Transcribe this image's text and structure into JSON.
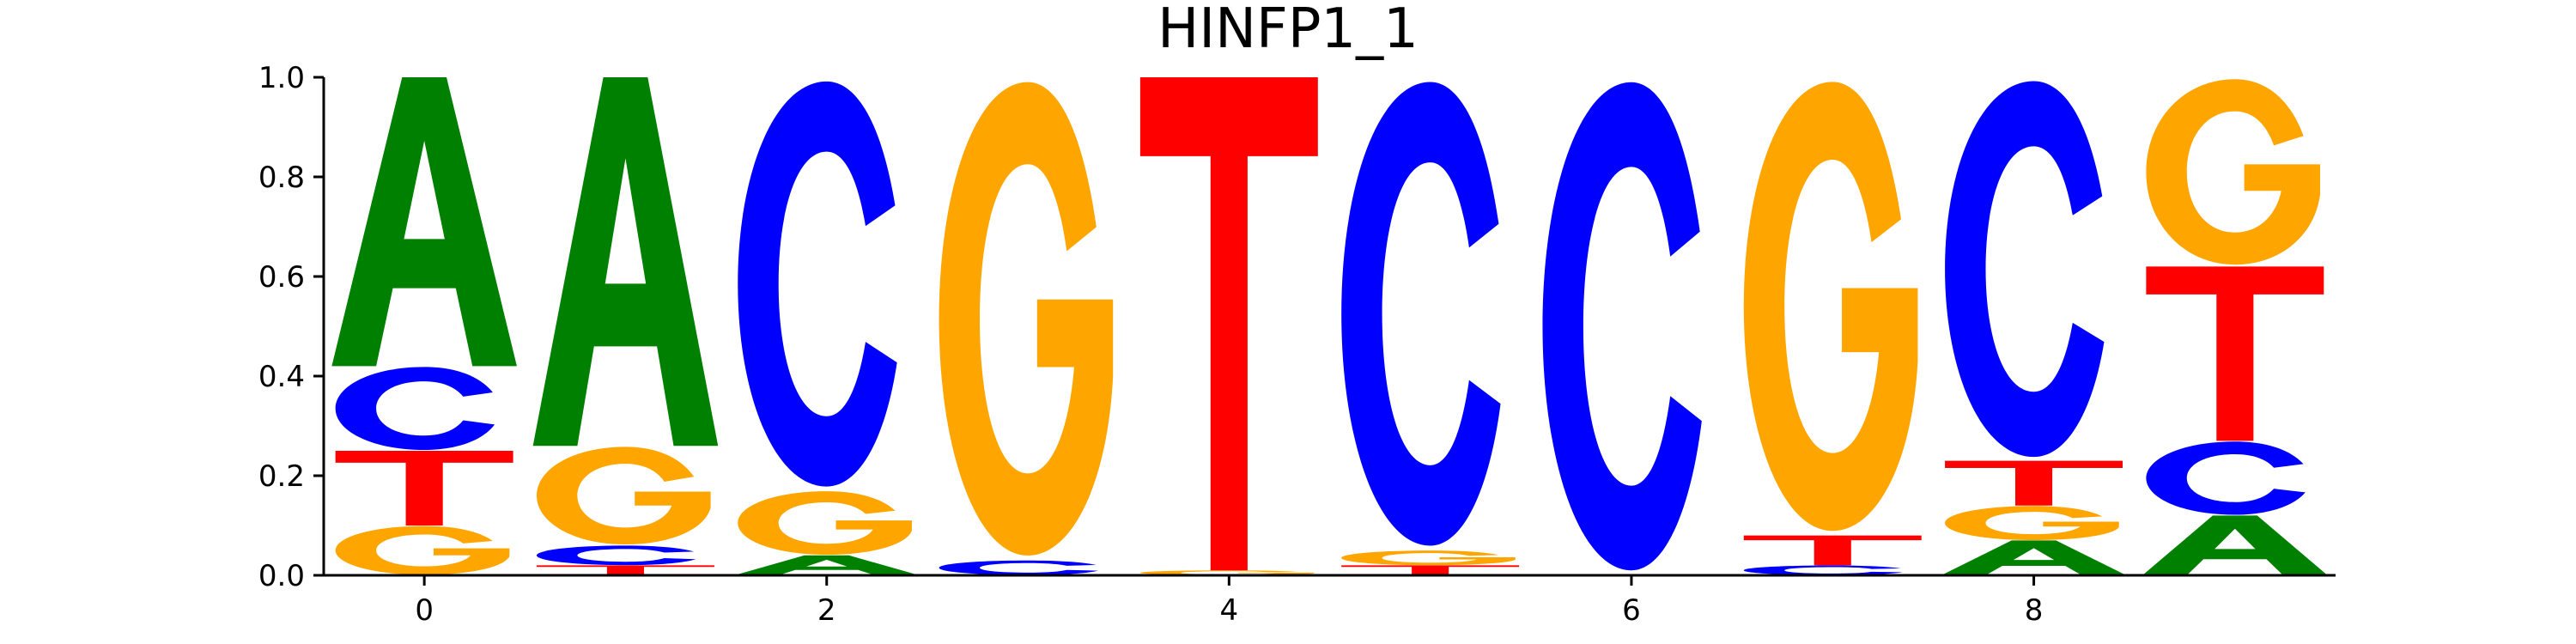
{
  "chart_data": {
    "type": "sequence-logo",
    "title": "HINFP1_1",
    "xlabel": "",
    "ylabel": "",
    "ylim": [
      0,
      1
    ],
    "xlim": [
      -0.5,
      9.5
    ],
    "x_ticks": [
      0,
      2,
      4,
      6,
      8
    ],
    "y_ticks": [
      0.0,
      0.2,
      0.4,
      0.6,
      0.8,
      1.0
    ],
    "x_tick_labels": [
      "0",
      "2",
      "4",
      "6",
      "8"
    ],
    "y_tick_labels": [
      "0.0",
      "0.2",
      "0.4",
      "0.6",
      "0.8",
      "1.0"
    ],
    "colors": {
      "A": "#008000",
      "C": "#0000ff",
      "G": "#ffa500",
      "T": "#ff0000"
    },
    "positions": [
      {
        "x": 0,
        "stack": [
          {
            "base": "G",
            "value": 0.1
          },
          {
            "base": "T",
            "value": 0.15
          },
          {
            "base": "C",
            "value": 0.17
          },
          {
            "base": "A",
            "value": 0.58
          }
        ]
      },
      {
        "x": 1,
        "stack": [
          {
            "base": "T",
            "value": 0.02
          },
          {
            "base": "C",
            "value": 0.04
          },
          {
            "base": "G",
            "value": 0.2
          },
          {
            "base": "A",
            "value": 0.74
          }
        ]
      },
      {
        "x": 2,
        "stack": [
          {
            "base": "A",
            "value": 0.04
          },
          {
            "base": "G",
            "value": 0.13
          },
          {
            "base": "C",
            "value": 0.83
          }
        ]
      },
      {
        "x": 3,
        "stack": [
          {
            "base": "C",
            "value": 0.03
          },
          {
            "base": "G",
            "value": 0.97
          }
        ]
      },
      {
        "x": 4,
        "stack": [
          {
            "base": "G",
            "value": 0.01
          },
          {
            "base": "T",
            "value": 0.99
          }
        ]
      },
      {
        "x": 5,
        "stack": [
          {
            "base": "T",
            "value": 0.02
          },
          {
            "base": "G",
            "value": 0.03
          },
          {
            "base": "C",
            "value": 0.95
          }
        ]
      },
      {
        "x": 6,
        "stack": [
          {
            "base": "C",
            "value": 1.0
          }
        ]
      },
      {
        "x": 7,
        "stack": [
          {
            "base": "C",
            "value": 0.02
          },
          {
            "base": "T",
            "value": 0.06
          },
          {
            "base": "G",
            "value": 0.92
          }
        ]
      },
      {
        "x": 8,
        "stack": [
          {
            "base": "A",
            "value": 0.07
          },
          {
            "base": "G",
            "value": 0.07
          },
          {
            "base": "T",
            "value": 0.09
          },
          {
            "base": "C",
            "value": 0.77
          }
        ]
      },
      {
        "x": 9,
        "stack": [
          {
            "base": "A",
            "value": 0.12
          },
          {
            "base": "C",
            "value": 0.15
          },
          {
            "base": "T",
            "value": 0.35
          },
          {
            "base": "G",
            "value": 0.38
          }
        ]
      }
    ]
  }
}
